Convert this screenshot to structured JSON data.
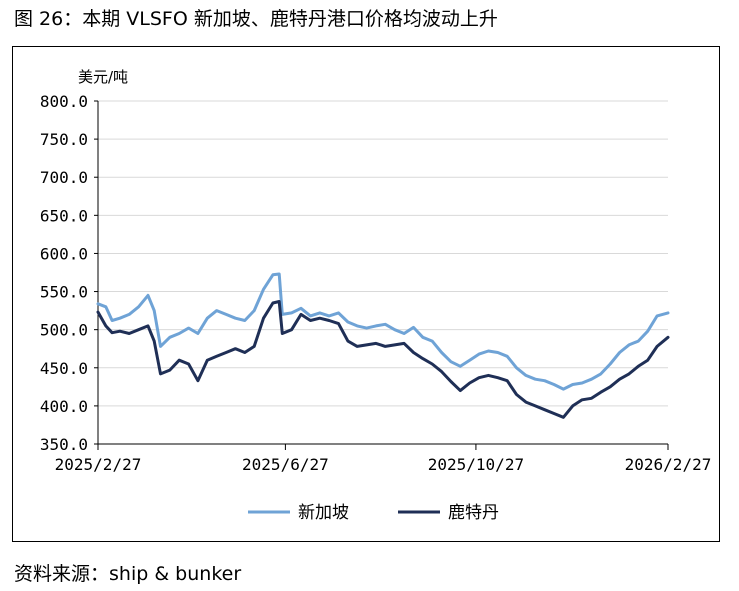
{
  "figure": {
    "title": "图 26：本期 VLSFO 新加坡、鹿特丹港口价格均波动上升",
    "source": "资料来源：ship & bunker"
  },
  "colors": {
    "singapore": "#6fa3d6",
    "rotterdam": "#1f2f56",
    "grid": "#d9d9d9",
    "axis": "#000000"
  },
  "chart_data": {
    "type": "line",
    "ylabel": "美元/吨",
    "ylim": [
      350,
      800
    ],
    "yticks": [
      "800.0",
      "750.0",
      "700.0",
      "650.0",
      "600.0",
      "550.0",
      "500.0",
      "450.0",
      "400.0",
      "350.0"
    ],
    "ytick_values": [
      800,
      750,
      700,
      650,
      600,
      550,
      500,
      450,
      400,
      350
    ],
    "xlim": [
      "2025-02-27",
      "2026-02-27"
    ],
    "xticks": [
      "2025/2/27",
      "2025/6/27",
      "2025/10/27",
      "2026/2/27"
    ],
    "xtick_values": [
      "2025-02-27",
      "2025-06-27",
      "2025-10-27",
      "2026-02-27"
    ],
    "grid": "horizontal",
    "legend_position": "bottom-center",
    "series": [
      {
        "name": "新加坡",
        "color_key": "singapore",
        "points": [
          [
            "2025-02-27",
            534
          ],
          [
            "2025-03-04",
            530
          ],
          [
            "2025-03-08",
            512
          ],
          [
            "2025-03-13",
            515
          ],
          [
            "2025-03-19",
            520
          ],
          [
            "2025-03-25",
            530
          ],
          [
            "2025-03-31",
            545
          ],
          [
            "2025-04-04",
            525
          ],
          [
            "2025-04-08",
            478
          ],
          [
            "2025-04-14",
            490
          ],
          [
            "2025-04-20",
            495
          ],
          [
            "2025-04-26",
            502
          ],
          [
            "2025-05-02",
            495
          ],
          [
            "2025-05-08",
            515
          ],
          [
            "2025-05-14",
            525
          ],
          [
            "2025-05-20",
            520
          ],
          [
            "2025-05-26",
            515
          ],
          [
            "2025-06-01",
            512
          ],
          [
            "2025-06-07",
            525
          ],
          [
            "2025-06-13",
            553
          ],
          [
            "2025-06-19",
            572
          ],
          [
            "2025-06-23",
            573
          ],
          [
            "2025-06-25",
            520
          ],
          [
            "2025-07-01",
            522
          ],
          [
            "2025-07-07",
            528
          ],
          [
            "2025-07-13",
            518
          ],
          [
            "2025-07-19",
            522
          ],
          [
            "2025-07-25",
            518
          ],
          [
            "2025-07-31",
            522
          ],
          [
            "2025-08-06",
            510
          ],
          [
            "2025-08-12",
            505
          ],
          [
            "2025-08-18",
            502
          ],
          [
            "2025-08-24",
            505
          ],
          [
            "2025-08-30",
            507
          ],
          [
            "2025-09-05",
            500
          ],
          [
            "2025-09-11",
            495
          ],
          [
            "2025-09-17",
            503
          ],
          [
            "2025-09-23",
            490
          ],
          [
            "2025-09-29",
            485
          ],
          [
            "2025-10-05",
            470
          ],
          [
            "2025-10-11",
            458
          ],
          [
            "2025-10-17",
            452
          ],
          [
            "2025-10-23",
            460
          ],
          [
            "2025-10-29",
            468
          ],
          [
            "2025-11-04",
            472
          ],
          [
            "2025-11-10",
            470
          ],
          [
            "2025-11-16",
            465
          ],
          [
            "2025-11-22",
            450
          ],
          [
            "2025-11-28",
            440
          ],
          [
            "2025-12-04",
            435
          ],
          [
            "2025-12-10",
            433
          ],
          [
            "2025-12-16",
            428
          ],
          [
            "2025-12-22",
            422
          ],
          [
            "2025-12-28",
            428
          ],
          [
            "2026-01-03",
            430
          ],
          [
            "2026-01-09",
            435
          ],
          [
            "2026-01-15",
            442
          ],
          [
            "2026-01-21",
            455
          ],
          [
            "2026-01-27",
            470
          ],
          [
            "2026-02-02",
            480
          ],
          [
            "2026-02-08",
            485
          ],
          [
            "2026-02-14",
            498
          ],
          [
            "2026-02-20",
            518
          ],
          [
            "2026-02-27",
            522
          ]
        ]
      },
      {
        "name": "鹿特丹",
        "color_key": "rotterdam",
        "points": [
          [
            "2025-02-27",
            523
          ],
          [
            "2025-03-04",
            505
          ],
          [
            "2025-03-08",
            496
          ],
          [
            "2025-03-13",
            498
          ],
          [
            "2025-03-19",
            495
          ],
          [
            "2025-03-25",
            500
          ],
          [
            "2025-03-31",
            505
          ],
          [
            "2025-04-04",
            485
          ],
          [
            "2025-04-08",
            442
          ],
          [
            "2025-04-14",
            447
          ],
          [
            "2025-04-20",
            460
          ],
          [
            "2025-04-26",
            455
          ],
          [
            "2025-05-02",
            433
          ],
          [
            "2025-05-08",
            460
          ],
          [
            "2025-05-14",
            465
          ],
          [
            "2025-05-20",
            470
          ],
          [
            "2025-05-26",
            475
          ],
          [
            "2025-06-01",
            470
          ],
          [
            "2025-06-07",
            478
          ],
          [
            "2025-06-13",
            515
          ],
          [
            "2025-06-19",
            535
          ],
          [
            "2025-06-23",
            537
          ],
          [
            "2025-06-25",
            495
          ],
          [
            "2025-07-01",
            500
          ],
          [
            "2025-07-07",
            520
          ],
          [
            "2025-07-13",
            512
          ],
          [
            "2025-07-19",
            515
          ],
          [
            "2025-07-25",
            512
          ],
          [
            "2025-07-31",
            508
          ],
          [
            "2025-08-06",
            485
          ],
          [
            "2025-08-12",
            478
          ],
          [
            "2025-08-18",
            480
          ],
          [
            "2025-08-24",
            482
          ],
          [
            "2025-08-30",
            478
          ],
          [
            "2025-09-05",
            480
          ],
          [
            "2025-09-11",
            482
          ],
          [
            "2025-09-17",
            470
          ],
          [
            "2025-09-23",
            462
          ],
          [
            "2025-09-29",
            455
          ],
          [
            "2025-10-05",
            445
          ],
          [
            "2025-10-11",
            432
          ],
          [
            "2025-10-17",
            420
          ],
          [
            "2025-10-23",
            430
          ],
          [
            "2025-10-29",
            437
          ],
          [
            "2025-11-04",
            440
          ],
          [
            "2025-11-10",
            437
          ],
          [
            "2025-11-16",
            433
          ],
          [
            "2025-11-22",
            415
          ],
          [
            "2025-11-28",
            405
          ],
          [
            "2025-12-04",
            400
          ],
          [
            "2025-12-10",
            395
          ],
          [
            "2025-12-16",
            390
          ],
          [
            "2025-12-22",
            385
          ],
          [
            "2025-12-28",
            400
          ],
          [
            "2026-01-03",
            408
          ],
          [
            "2026-01-09",
            410
          ],
          [
            "2026-01-15",
            418
          ],
          [
            "2026-01-21",
            425
          ],
          [
            "2026-01-27",
            435
          ],
          [
            "2026-02-02",
            442
          ],
          [
            "2026-02-08",
            452
          ],
          [
            "2026-02-14",
            460
          ],
          [
            "2026-02-20",
            478
          ],
          [
            "2026-02-27",
            490
          ]
        ]
      }
    ]
  }
}
